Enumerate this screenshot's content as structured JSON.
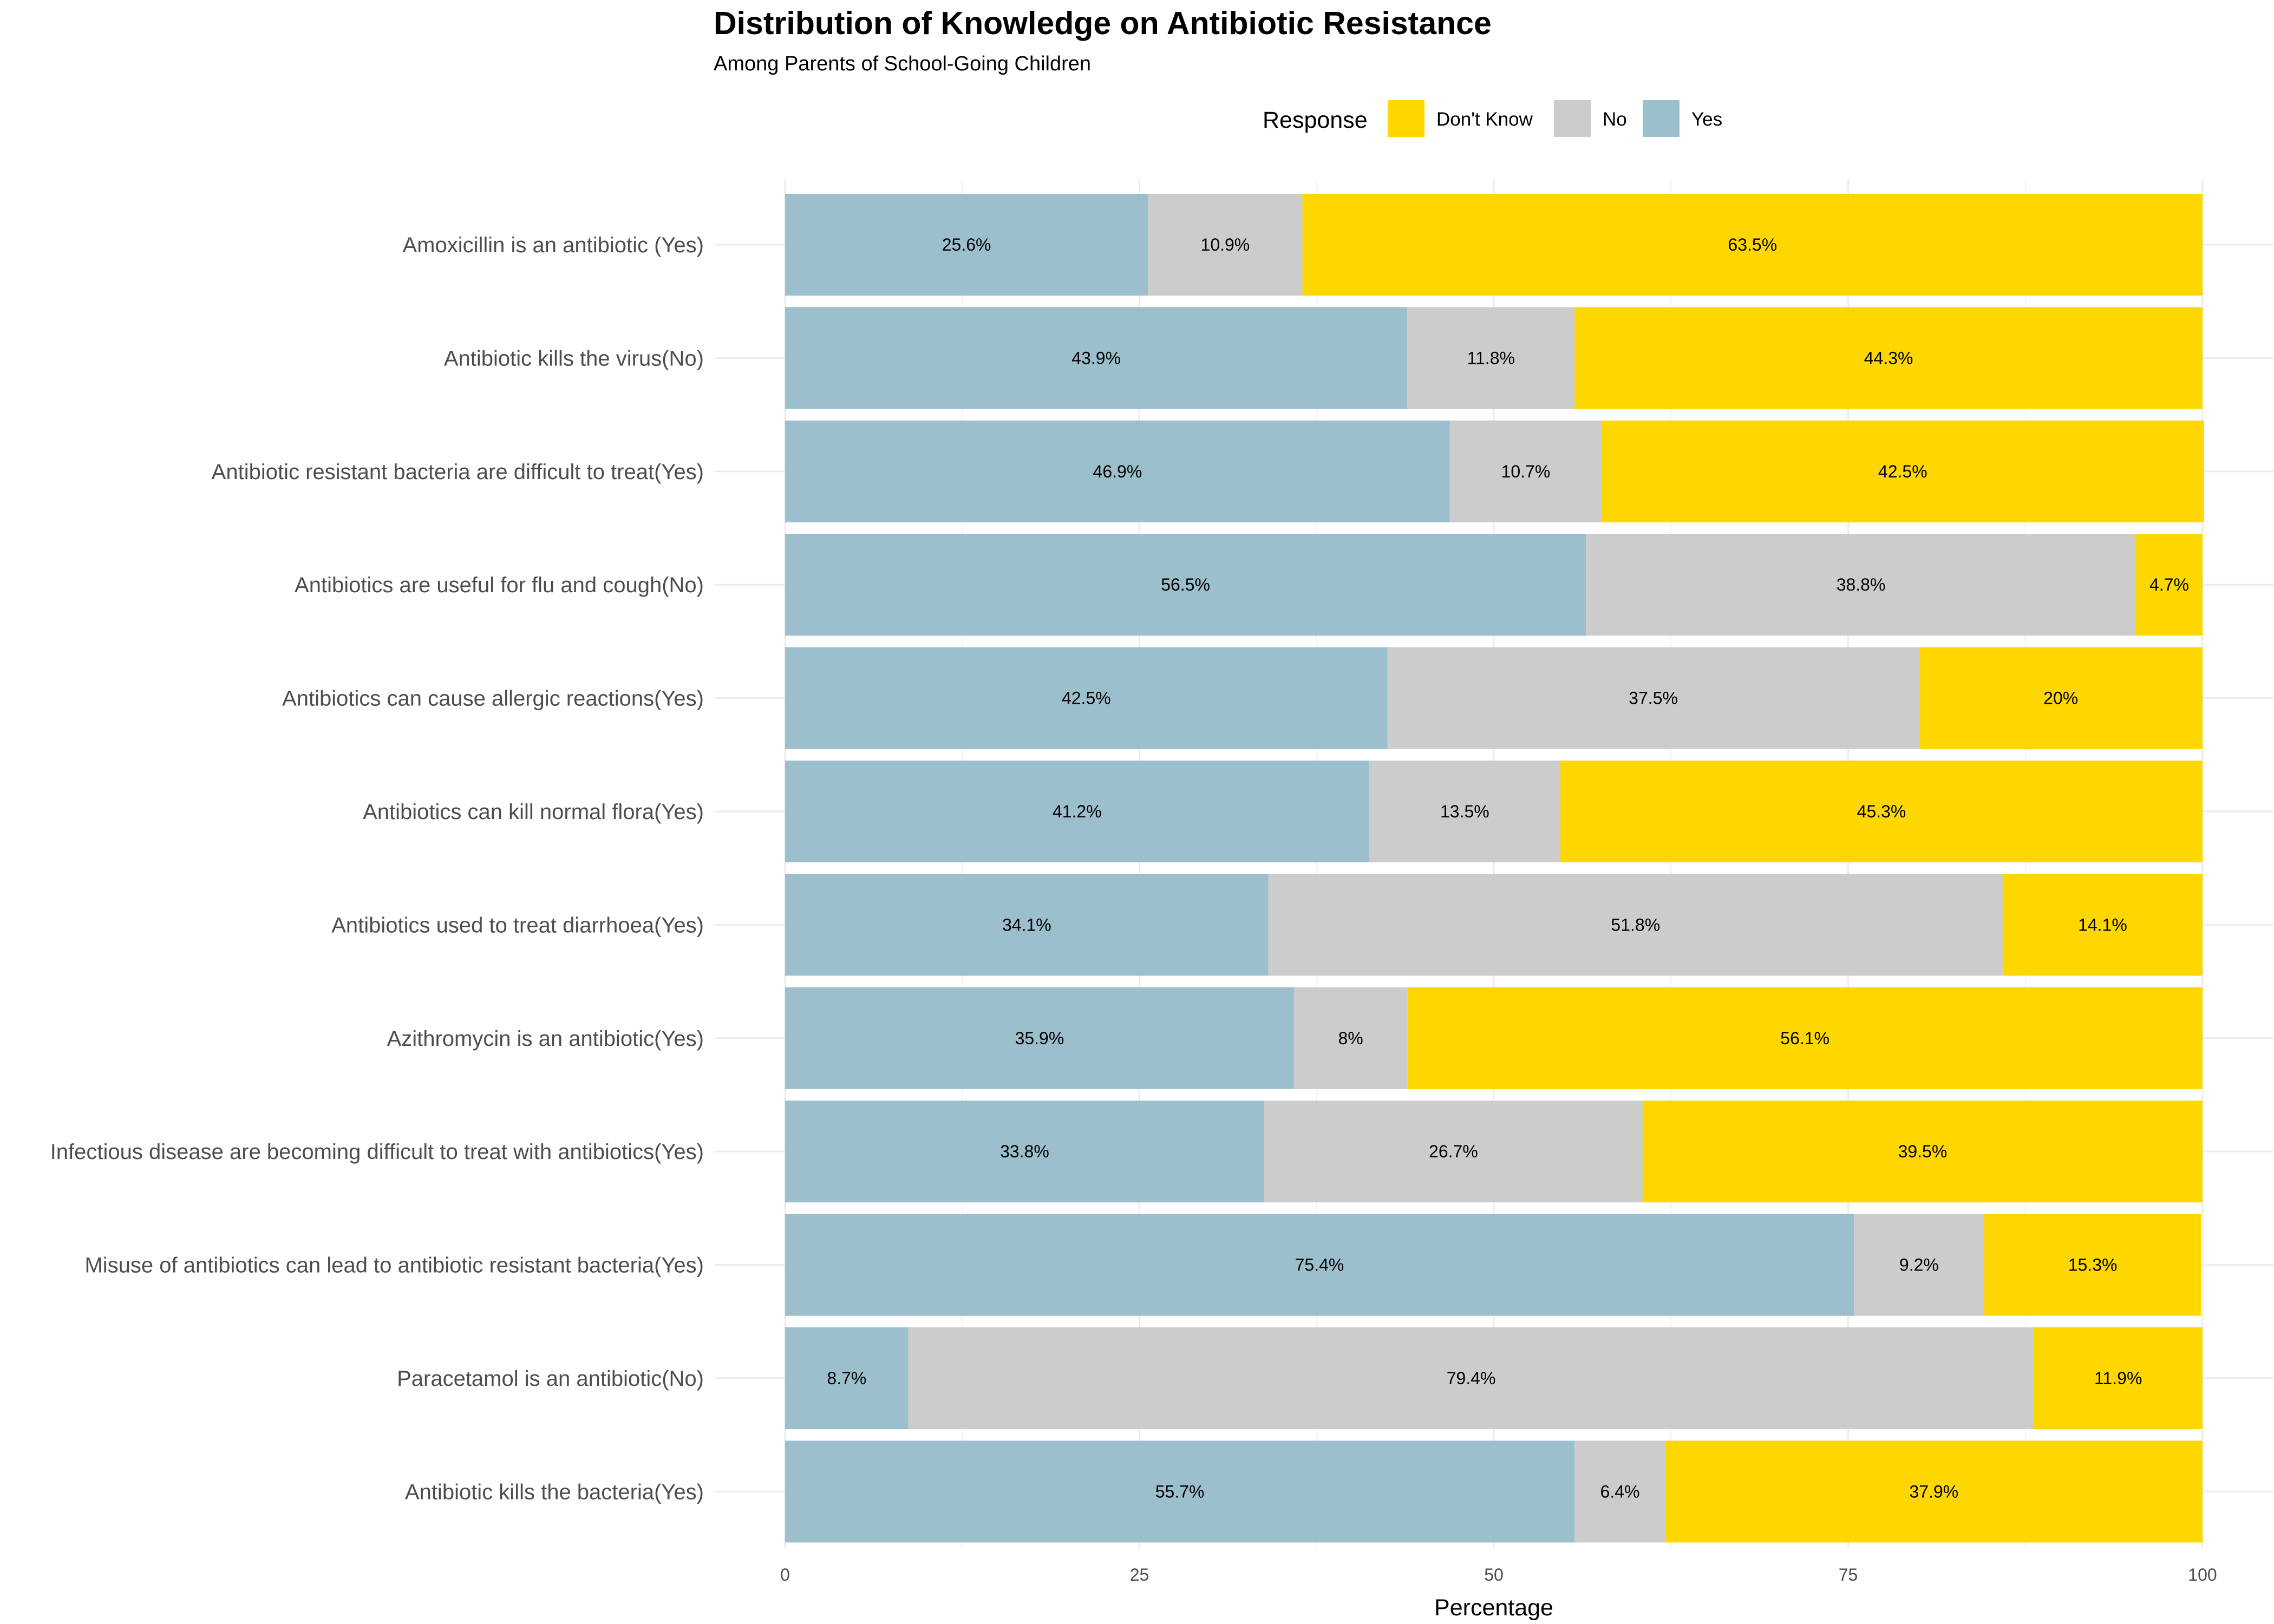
{
  "chart_data": {
    "type": "bar",
    "orientation": "horizontal",
    "stacked": true,
    "title": "Distribution of Knowledge on Antibiotic Resistance",
    "subtitle": "Among Parents of School-Going Children",
    "xlabel": "Percentage",
    "ylabel": "",
    "xlim": [
      0,
      100
    ],
    "xticks": [
      "0",
      "25",
      "50",
      "75",
      "100"
    ],
    "legend": {
      "title": "Response",
      "position": "top",
      "entries": [
        "Don't Know",
        "No",
        "Yes"
      ]
    },
    "categories": [
      "Amoxicillin is an antibiotic (Yes)",
      "Antibiotic kills the virus(No)",
      "Antibiotic resistant bacteria are difficult to treat(Yes)",
      "Antibiotics are useful for flu and cough(No)",
      "Antibiotics can cause allergic reactions(Yes)",
      "Antibiotics can kill normal flora(Yes)",
      "Antibiotics used to treat diarrhoea(Yes)",
      "Azithromycin is an antibiotic(Yes)",
      "Infectious disease are becoming difficult to treat with antibiotics(Yes)",
      "Misuse of antibiotics can lead to antibiotic resistant bacteria(Yes)",
      "Paracetamol is an antibiotic(No)",
      "Antibiotic kills the bacteria(Yes)"
    ],
    "series": [
      {
        "name": "Yes",
        "color": "#9BBFCC",
        "values": [
          25.6,
          43.9,
          46.9,
          56.5,
          42.5,
          41.2,
          34.1,
          35.9,
          33.8,
          75.4,
          8.7,
          55.7
        ]
      },
      {
        "name": "No",
        "color": "#CCCCCC",
        "values": [
          10.9,
          11.8,
          10.7,
          38.8,
          37.5,
          13.5,
          51.8,
          8.0,
          26.7,
          9.2,
          79.4,
          6.4
        ]
      },
      {
        "name": "Don't Know",
        "color": "#FFD700",
        "values": [
          63.5,
          44.3,
          42.5,
          4.7,
          20.0,
          45.3,
          14.1,
          56.1,
          39.5,
          15.3,
          11.9,
          37.9
        ]
      }
    ],
    "data_labels": [
      [
        "25.6%",
        "10.9%",
        "63.5%"
      ],
      [
        "43.9%",
        "11.8%",
        "44.3%"
      ],
      [
        "46.9%",
        "10.7%",
        "42.5%"
      ],
      [
        "56.5%",
        "38.8%",
        "4.7%"
      ],
      [
        "42.5%",
        "37.5%",
        "20%"
      ],
      [
        "41.2%",
        "13.5%",
        "45.3%"
      ],
      [
        "34.1%",
        "51.8%",
        "14.1%"
      ],
      [
        "35.9%",
        "8%",
        "56.1%"
      ],
      [
        "33.8%",
        "26.7%",
        "39.5%"
      ],
      [
        "75.4%",
        "9.2%",
        "15.3%"
      ],
      [
        "8.7%",
        "79.4%",
        "11.9%"
      ],
      [
        "55.7%",
        "6.4%",
        "37.9%"
      ]
    ]
  }
}
